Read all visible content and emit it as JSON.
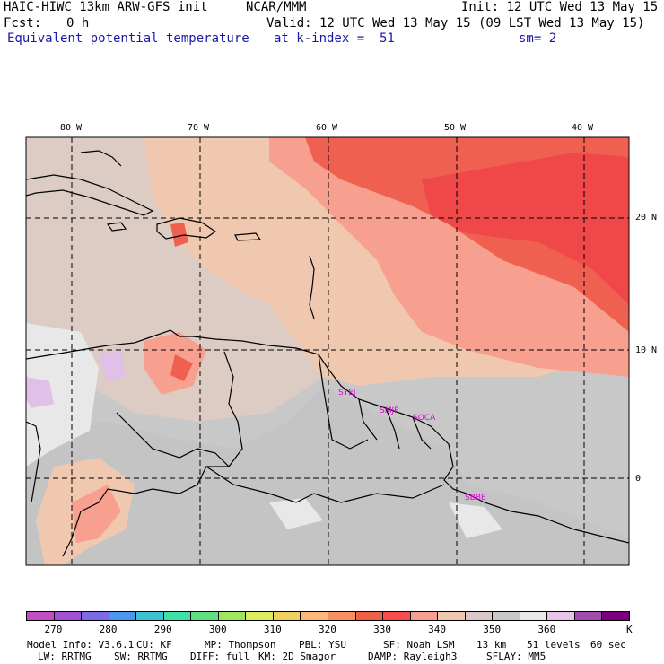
{
  "header": {
    "model": "HAIC-HIWC 13km ARW-GFS init",
    "org": "NCAR/MMM",
    "init": "Init: 12 UTC Wed 13 May 15",
    "fcst_label": "Fcst:",
    "fcst_value": "0 h",
    "valid": "Valid: 12 UTC Wed 13 May 15 (09 LST Wed 13 May 15)",
    "field": "Equivalent potential temperature",
    "level": "at k-index =  51",
    "smooth": "sm= 2"
  },
  "map": {
    "lon_labels": [
      "80 W",
      "70 W",
      "60 W",
      "50 W",
      "40 W"
    ],
    "lat_labels": [
      "20 N",
      "10 N",
      "0"
    ],
    "stations": [
      "SYEJ",
      "SMJP",
      "SOCA",
      "SBBE"
    ],
    "station_color": "#e000e0"
  },
  "colorbar": {
    "colors": [
      "#c050c0",
      "#a050d0",
      "#7a6ae6",
      "#4c96ec",
      "#3cc4d4",
      "#3ce0a8",
      "#5ee080",
      "#9ee660",
      "#dcec5c",
      "#f0d060",
      "#f8b878",
      "#f89060",
      "#f06048",
      "#f84c4c",
      "#f8a090",
      "#f0c8b0",
      "#d8c8c8",
      "#c8c8c8",
      "#e8e8e8",
      "#e8c4e8",
      "#a04ca8",
      "#7a0080"
    ],
    "ticks": [
      "270",
      "280",
      "290",
      "300",
      "310",
      "320",
      "330",
      "340",
      "350",
      "360"
    ],
    "unit": "K"
  },
  "footer": {
    "model_info": "Model Info: V3.6.1",
    "cu": "CU: KF",
    "mp": "MP: Thompson",
    "pbl": "PBL: YSU",
    "sf": "SF: Noah LSM",
    "res": "13 km",
    "levels": "51 levels",
    "dt": "60 sec",
    "lw": "LW: RRTMG",
    "sw": "SW: RRTMG",
    "diff": "DIFF: full",
    "km": "KM: 2D Smagor",
    "damp": "DAMP: Rayleigh3",
    "sflay": "SFLAY: MM5"
  }
}
